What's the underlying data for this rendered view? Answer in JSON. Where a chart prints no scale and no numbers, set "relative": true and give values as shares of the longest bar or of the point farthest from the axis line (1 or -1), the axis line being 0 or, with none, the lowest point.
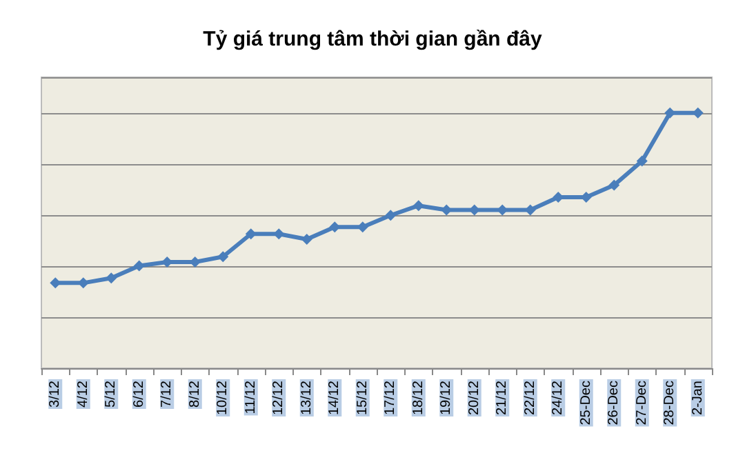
{
  "chart_data": {
    "type": "line",
    "title": "Tỷ giá trung tâm thời gian gần đây",
    "relative": true,
    "categories": [
      "3/12",
      "4/12",
      "5/12",
      "6/12",
      "7/12",
      "8/12",
      "10/12",
      "11/12",
      "12/12",
      "13/12",
      "14/12",
      "15/12",
      "17/12",
      "18/12",
      "19/12",
      "20/12",
      "21/12",
      "22/12",
      "24/12",
      "25-Dec",
      "26-Dec",
      "27-Dec",
      "28-Dec",
      "2-Jan"
    ],
    "series": [
      {
        "color": "#4a7ebb",
        "values": [
          0.334,
          0.334,
          0.353,
          0.401,
          0.416,
          0.416,
          0.437,
          0.526,
          0.526,
          0.505,
          0.553,
          0.553,
          0.599,
          0.637,
          0.62,
          0.62,
          0.62,
          0.62,
          0.67,
          0.67,
          0.717,
          0.812,
          1,
          1
        ]
      }
    ],
    "grid": "y",
    "marker": "diamond",
    "line_style": "solid"
  }
}
